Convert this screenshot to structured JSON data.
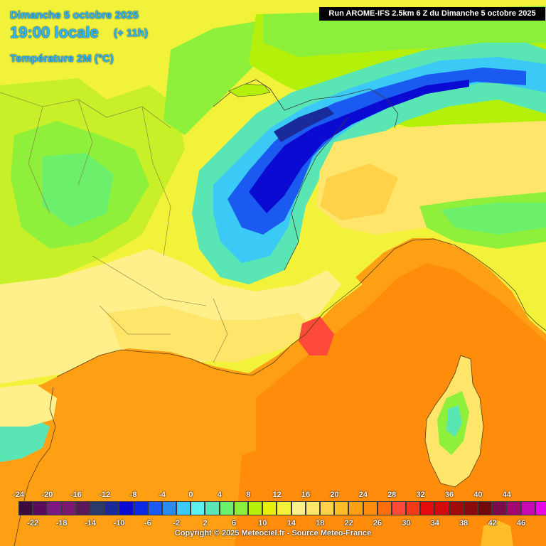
{
  "header": {
    "date_line": "Dimanche 5 octobre 2025",
    "time_line": "19:00 locale",
    "offset_line": "(+ 11h)",
    "parameter_line": "Température 2M (°C)"
  },
  "run_info": "Run AROME-IFS 2.5km 6 Z du Dimanche 5 octobre 2025",
  "legend": {
    "top_labels": [
      "-24",
      "-20",
      "-16",
      "-12",
      "-8",
      "-4",
      "0",
      "4",
      "8",
      "12",
      "16",
      "20",
      "24",
      "28",
      "32",
      "36",
      "40",
      "44"
    ],
    "bottom_labels": [
      "-22",
      "-18",
      "-14",
      "-10",
      "-6",
      "-2",
      "2",
      "6",
      "10",
      "14",
      "18",
      "22",
      "26",
      "30",
      "34",
      "38",
      "42",
      "46"
    ],
    "colors": [
      "#3c0a3c",
      "#5a0a5a",
      "#7a1a80",
      "#7a1a70",
      "#5a1a5a",
      "#2a3a6a",
      "#1a2a9a",
      "#0a0ad2",
      "#0a2ae6",
      "#1a5af0",
      "#2a8cf0",
      "#3acaf5",
      "#5af0f0",
      "#5ae6b4",
      "#6af06a",
      "#8cf03a",
      "#b4f00a",
      "#e6f00a",
      "#f5f03a",
      "#fff08c",
      "#ffe66a",
      "#ffd24a",
      "#ffbe28",
      "#ffa014",
      "#ff8c0a",
      "#ff6e0a",
      "#ff4a3a",
      "#f03a1a",
      "#e60a0a",
      "#d20a0a",
      "#a00a0a",
      "#8c0a0a",
      "#6e0a0a",
      "#7a0a4a",
      "#a00a6e",
      "#c80ab4",
      "#e60ae6",
      "#f03af0",
      "#f58cf5"
    ]
  },
  "copyright": "Copyright © 2025 Meteociel.fr - Source Meteo-France"
}
